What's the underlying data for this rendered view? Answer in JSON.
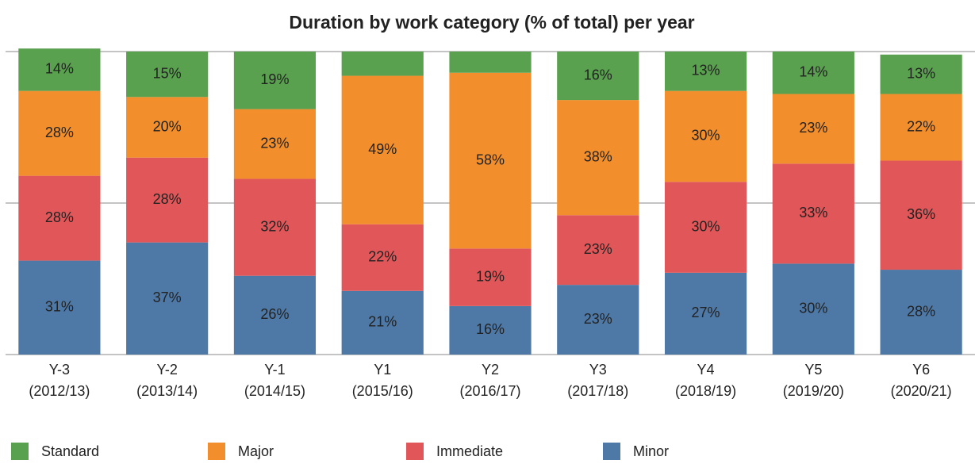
{
  "chart_data": {
    "type": "stacked_bar",
    "title": "Duration by work category (% of total) per year",
    "categories": [
      [
        "Y-3",
        "(2012/13)"
      ],
      [
        "Y-2",
        "(2013/14)"
      ],
      [
        "Y-1",
        "(2014/15)"
      ],
      [
        "Y1",
        "(2015/16)"
      ],
      [
        "Y2",
        "(2016/17)"
      ],
      [
        "Y3",
        "(2017/18)"
      ],
      [
        "Y4",
        "(2018/19)"
      ],
      [
        "Y5",
        "(2019/20)"
      ],
      [
        "Y6",
        "(2020/21)"
      ]
    ],
    "series": [
      {
        "name": "Standard",
        "color": "#59a14f",
        "values": [
          14,
          15,
          19,
          8,
          7,
          16,
          13,
          14,
          13
        ],
        "value_labels": [
          "14%",
          "15%",
          "19%",
          null,
          null,
          "16%",
          "13%",
          "14%",
          "13%"
        ]
      },
      {
        "name": "Major",
        "color": "#f28e2b",
        "values": [
          28,
          20,
          23,
          49,
          58,
          38,
          30,
          23,
          22
        ],
        "value_labels": [
          "28%",
          "20%",
          "23%",
          "49%",
          "58%",
          "38%",
          "30%",
          "23%",
          "22%"
        ]
      },
      {
        "name": "Immediate",
        "color": "#e15759",
        "values": [
          28,
          28,
          32,
          22,
          19,
          23,
          30,
          33,
          36
        ],
        "value_labels": [
          "28%",
          "28%",
          "32%",
          "22%",
          "19%",
          "23%",
          "30%",
          "33%",
          "36%"
        ]
      },
      {
        "name": "Minor",
        "color": "#4e79a7",
        "values": [
          31,
          37,
          26,
          21,
          16,
          23,
          27,
          30,
          28
        ],
        "value_labels": [
          "31%",
          "37%",
          "26%",
          "21%",
          "16%",
          "23%",
          "27%",
          "30%",
          "28%"
        ]
      }
    ],
    "ylim": [
      0,
      100
    ],
    "yticks": [
      0,
      50,
      100
    ],
    "grid": true
  }
}
